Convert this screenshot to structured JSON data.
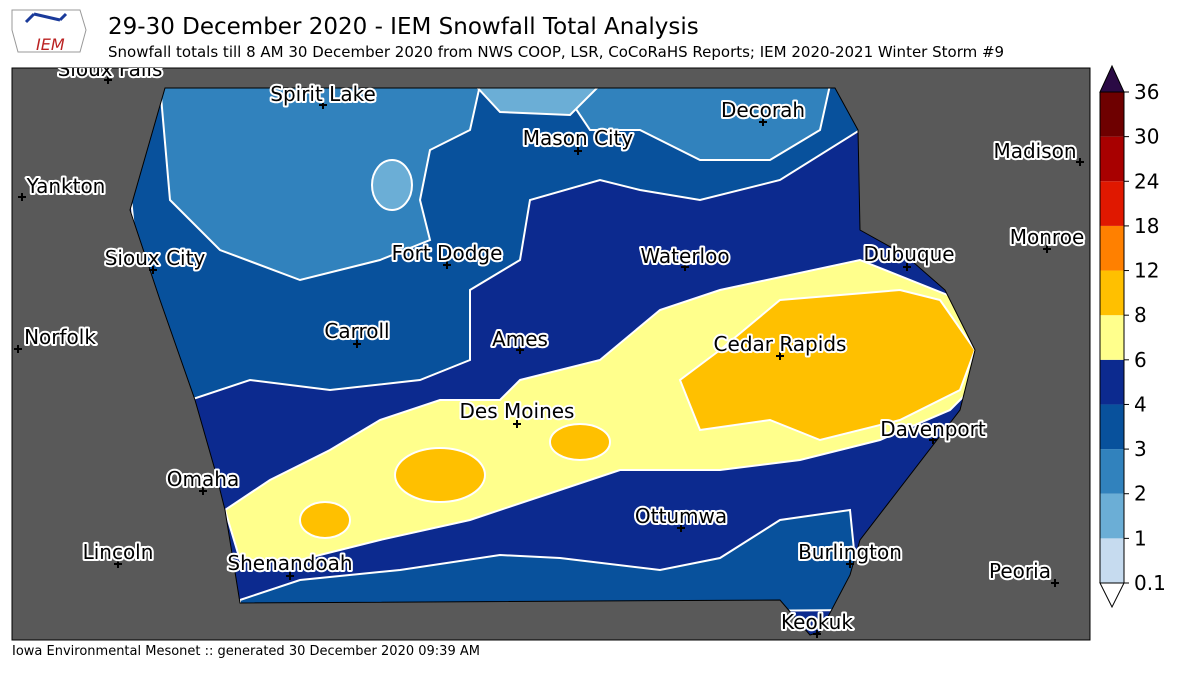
{
  "header": {
    "title": "29-30 December 2020 - IEM Snowfall Total Analysis",
    "subtitle": "Snowfall totals till 8 AM 30 December 2020 from NWS COOP, LSR, CoCoRaHS Reports; IEM 2020-2021 Winter Storm #9",
    "logo": "IEM"
  },
  "map": {
    "cities": [
      "Sioux Falls",
      "Spirit Lake",
      "Decorah",
      "Mason City",
      "Madison",
      "Yankton",
      "Sioux City",
      "Fort Dodge",
      "Waterloo",
      "Dubuque",
      "Monroe",
      "Carroll",
      "Ames",
      "Norfolk",
      "Cedar Rapids",
      "Des Moines",
      "Davenport",
      "Omaha",
      "Ottumwa",
      "Lincoln",
      "Burlington",
      "Shenandoah",
      "Peoria",
      "Keokuk"
    ]
  },
  "legend": {
    "levels": [
      0.1,
      1,
      2,
      3,
      4,
      6,
      8,
      12,
      18,
      24,
      30,
      36
    ],
    "colors": [
      "#c6dbef",
      "#6baed6",
      "#3182bd",
      "#08519c",
      "#0c2a8f",
      "#ffff8c",
      "#ffc000",
      "#ff8000",
      "#e01800",
      "#a80000",
      "#6e0000"
    ],
    "over_color": "#2a0a44",
    "under_color": "#ffffff"
  },
  "footer": "Iowa Environmental Mesonet :: generated 30 December 2020 09:39 AM"
}
